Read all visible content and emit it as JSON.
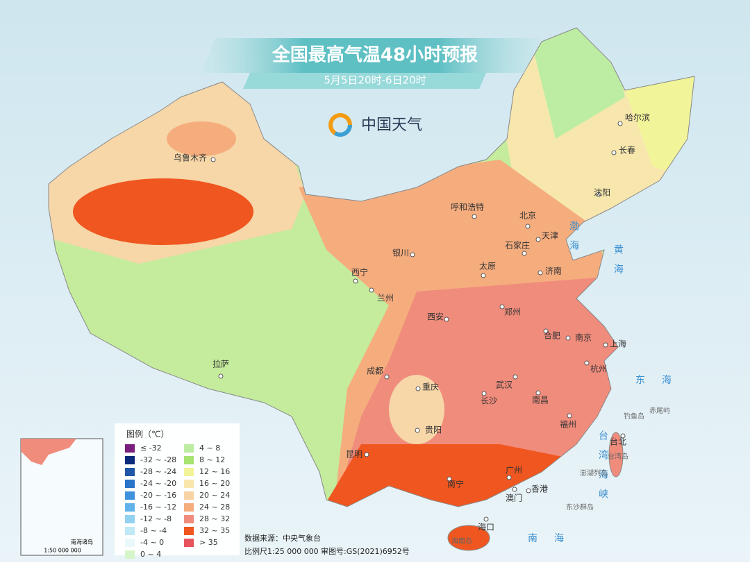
{
  "header": {
    "title": "全国最高气温48小时预报",
    "subtitle": "5月5日20时-6日20时",
    "logo": "中国天气"
  },
  "cities": [
    "乌鲁木齐",
    "哈尔滨",
    "长春",
    "沈阳",
    "呼和浩特",
    "北京",
    "天津",
    "石家庄",
    "太原",
    "济南",
    "银川",
    "西宁",
    "兰州",
    "郑州",
    "西安",
    "合肥",
    "南京",
    "上海",
    "武汉",
    "成都",
    "重庆",
    "杭州",
    "长沙",
    "南昌",
    "拉萨",
    "贵阳",
    "福州",
    "台北",
    "昆明",
    "广州",
    "南宁",
    "香港",
    "澳门",
    "海口"
  ],
  "seas": [
    "渤海",
    "黄海",
    "东海",
    "台湾海峡",
    "南海"
  ],
  "islands": [
    "钓鱼岛",
    "赤尾屿",
    "台湾岛",
    "澎湖列岛",
    "东沙群岛",
    "海南岛"
  ],
  "legend": {
    "title": "图例（℃）",
    "items": [
      {
        "label": "≤ -32",
        "color": "#7a1f7e"
      },
      {
        "label": "-32 ~ -28",
        "color": "#0b2a7a"
      },
      {
        "label": "-28 ~ -24",
        "color": "#1f56a8"
      },
      {
        "label": "-24 ~ -20",
        "color": "#2a74c9"
      },
      {
        "label": "-20 ~ -16",
        "color": "#3f92de"
      },
      {
        "label": "-16 ~ -12",
        "color": "#62b3ea"
      },
      {
        "label": "-12 ~ -8",
        "color": "#92d1f0"
      },
      {
        "label": "-8 ~ -4",
        "color": "#bfe9f7"
      },
      {
        "label": "-4 ~ 0",
        "color": "#e9f8fb"
      },
      {
        "label": "0 ~ 4",
        "color": "#d6f5c8"
      },
      {
        "label": "4 ~ 8",
        "color": "#bdeda2"
      },
      {
        "label": "8 ~ 12",
        "color": "#a6e36f"
      },
      {
        "label": "12 ~ 16",
        "color": "#f2f49a"
      },
      {
        "label": "16 ~ 20",
        "color": "#f7e7ad"
      },
      {
        "label": "20 ~ 24",
        "color": "#f8d3a6"
      },
      {
        "label": "24 ~ 28",
        "color": "#f5ad7e"
      },
      {
        "label": "28 ~ 32",
        "color": "#f08c7c"
      },
      {
        "label": "32 ~ 35",
        "color": "#f0561f"
      },
      {
        "label": "> 35",
        "color": "#e8545e"
      }
    ]
  },
  "footer": {
    "source": "数据来源：中央气象台",
    "scale": "比例尺1:25 000 000",
    "approval": "审图号:GS(2021)6952号"
  },
  "inset": {
    "title": "南海诸岛",
    "scale": "1:50 000 000"
  }
}
